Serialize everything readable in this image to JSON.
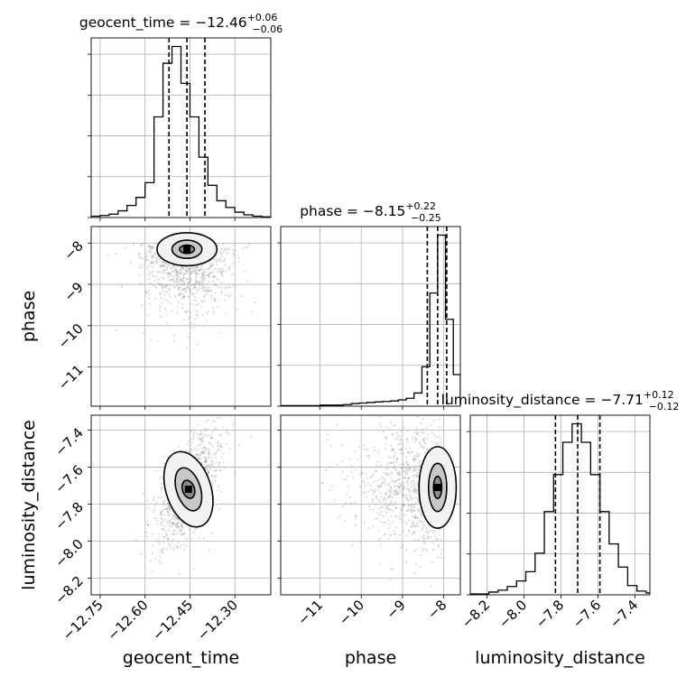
{
  "chart_data": {
    "type": "corner",
    "parameters": [
      "geocent_time",
      "phase",
      "luminosity_distance"
    ],
    "marginals": [
      {
        "parameter": "geocent_time",
        "title": {
          "name": "geocent_time",
          "median": "−12.46",
          "plus": "+0.06",
          "minus": "−0.06"
        },
        "xlim": [
          -12.78,
          -12.18
        ],
        "quantiles": [
          -12.52,
          -12.46,
          -12.4
        ],
        "bin_edges": [
          -12.78,
          -12.75,
          -12.72,
          -12.69,
          -12.66,
          -12.63,
          -12.6,
          -12.57,
          -12.54,
          -12.51,
          -12.48,
          -12.45,
          -12.42,
          -12.39,
          -12.36,
          -12.33,
          -12.3,
          -12.27,
          -12.24,
          -12.21,
          -12.18
        ],
        "counts": [
          2,
          3,
          5,
          10,
          18,
          30,
          52,
          150,
          230,
          255,
          200,
          150,
          90,
          48,
          25,
          15,
          8,
          4,
          2,
          1
        ]
      },
      {
        "parameter": "phase",
        "title": {
          "name": "phase",
          "median": "−8.15",
          "plus": "+0.22",
          "minus": "−0.25"
        },
        "xlim": [
          -11.95,
          -7.6
        ],
        "quantiles": [
          -8.4,
          -8.15,
          -7.93
        ],
        "bin_edges": [
          -11.95,
          -11.76,
          -11.57,
          -11.38,
          -11.19,
          -11.0,
          -10.81,
          -10.62,
          -10.43,
          -10.24,
          -10.05,
          -9.86,
          -9.67,
          -9.48,
          -9.29,
          -9.1,
          -8.91,
          -8.72,
          -8.53,
          -8.34,
          -8.15,
          -7.96,
          -7.77,
          -7.6
        ],
        "counts": [
          1,
          1,
          1,
          1,
          1,
          2,
          2,
          2,
          3,
          5,
          6,
          7,
          8,
          9,
          10,
          12,
          15,
          25,
          75,
          215,
          325,
          165,
          60
        ]
      },
      {
        "parameter": "luminosity_distance",
        "title": {
          "name": "luminosity_distance",
          "median": "−7.71",
          "plus": "+0.12",
          "minus": "−0.12"
        },
        "xlim": [
          -8.29,
          -7.32
        ],
        "quantiles": [
          -7.83,
          -7.71,
          -7.59
        ],
        "bin_edges": [
          -8.29,
          -8.24,
          -8.19,
          -8.14,
          -8.09,
          -8.04,
          -7.99,
          -7.94,
          -7.89,
          -7.84,
          -7.79,
          -7.74,
          -7.69,
          -7.64,
          -7.59,
          -7.54,
          -7.49,
          -7.44,
          -7.39,
          -7.34,
          -7.32
        ],
        "counts": [
          1,
          1,
          3,
          5,
          9,
          15,
          25,
          45,
          90,
          130,
          165,
          185,
          165,
          130,
          90,
          55,
          30,
          10,
          4,
          2
        ]
      }
    ],
    "scatters": [
      {
        "x": "geocent_time",
        "y": "phase",
        "xlim": [
          -12.78,
          -12.18
        ],
        "ylim": [
          -11.95,
          -7.6
        ],
        "center": [
          -12.46,
          -8.15
        ],
        "contours": [
          {
            "rx": 0.025,
            "ry": 0.1
          },
          {
            "rx": 0.05,
            "ry": 0.22
          },
          {
            "rx": 0.1,
            "ry": 0.4
          }
        ]
      },
      {
        "x": "geocent_time",
        "y": "luminosity_distance",
        "xlim": [
          -12.78,
          -12.18
        ],
        "ylim": [
          -8.29,
          -7.32
        ],
        "center": [
          -12.455,
          -7.72
        ],
        "correlation": 0.6,
        "contours": [
          {
            "rx": 0.02,
            "ry": 0.05
          },
          {
            "rx": 0.04,
            "ry": 0.12
          },
          {
            "rx": 0.075,
            "ry": 0.21
          }
        ]
      },
      {
        "x": "phase",
        "y": "luminosity_distance",
        "xlim": [
          -11.95,
          -7.6
        ],
        "ylim": [
          -8.29,
          -7.32
        ],
        "center": [
          -8.15,
          -7.71
        ],
        "contours": [
          {
            "rx": 0.1,
            "ry": 0.06
          },
          {
            "rx": 0.22,
            "ry": 0.13
          },
          {
            "rx": 0.45,
            "ry": 0.22
          }
        ]
      }
    ],
    "ticks": {
      "geocent_time": [
        {
          "value": -12.75,
          "label": "−12.75"
        },
        {
          "value": -12.6,
          "label": "−12.60"
        },
        {
          "value": -12.45,
          "label": "−12.45"
        },
        {
          "value": -12.3,
          "label": "−12.30"
        }
      ],
      "phase": [
        {
          "value": -11,
          "label": "−11"
        },
        {
          "value": -10,
          "label": "−10"
        },
        {
          "value": -9,
          "label": "−9"
        },
        {
          "value": -8,
          "label": "−8"
        }
      ],
      "luminosity_distance": [
        {
          "value": -8.2,
          "label": "−8.2"
        },
        {
          "value": -8.0,
          "label": "−8.0"
        },
        {
          "value": -7.8,
          "label": "−7.8"
        },
        {
          "value": -7.6,
          "label": "−7.6"
        },
        {
          "value": -7.4,
          "label": "−7.4"
        }
      ]
    },
    "axis_labels": {
      "x": [
        "geocent_time",
        "phase",
        "luminosity_distance"
      ],
      "y": [
        "phase",
        "luminosity_distance"
      ]
    },
    "grid": true
  }
}
